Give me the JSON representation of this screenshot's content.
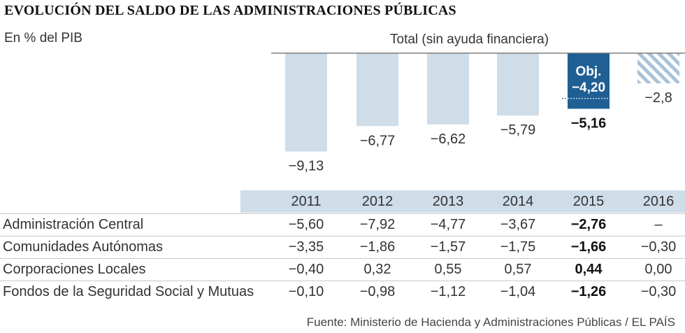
{
  "header": {
    "title": "EVOLUCIÓN DEL SALDO DE LAS ADMINISTRACIONES PÚBLICAS",
    "unit": "En % del PIB",
    "subtitle": "Total (sin ayuda financiera)"
  },
  "chart_data": {
    "type": "bar",
    "title": "EVOLUCIÓN DEL SALDO DE LAS ADMINISTRACIONES PÚBLICAS",
    "ylabel": "En % del PIB",
    "subtitle": "Total (sin ayuda financiera)",
    "categories": [
      "2011",
      "2012",
      "2013",
      "2014",
      "2015",
      "2016"
    ],
    "values": [
      -9.13,
      -6.77,
      -6.62,
      -5.79,
      -5.16,
      -2.8
    ],
    "value_labels": [
      "−9,13",
      "−6,77",
      "−6,62",
      "−5,79",
      "−5,16",
      "−2,8"
    ],
    "highlight_index": 4,
    "forecast_index": 5,
    "objective": {
      "value": -4.2,
      "label_line1": "Obj.",
      "label_line2": "−4,20"
    },
    "ylim": [
      -10,
      0
    ],
    "colors": {
      "bar": "#cfdde9",
      "highlight": "#1f5f94",
      "forecast_hatch": "#a9c2d8",
      "axis": "#666666"
    }
  },
  "table": {
    "years": [
      "2011",
      "2012",
      "2013",
      "2014",
      "2015",
      "2016"
    ],
    "rows": [
      {
        "label": "Administración Central",
        "values": [
          "−5,60",
          "−7,92",
          "−4,77",
          "−3,67",
          "−2,76",
          "–"
        ]
      },
      {
        "label": "Comunidades Autónomas",
        "values": [
          "−3,35",
          "−1,86",
          "−1,57",
          "−1,75",
          "−1,66",
          "−0,30"
        ]
      },
      {
        "label": "Corporaciones Locales",
        "values": [
          "−0,40",
          "0,32",
          "0,55",
          "0,57",
          "0,44",
          "0,00"
        ]
      },
      {
        "label": "Fondos de la Seguridad Social y Mutuas",
        "values": [
          "−0,10",
          "−0,98",
          "−1,12",
          "−1,04",
          "−1,26",
          "−0,30"
        ]
      }
    ],
    "bold_column": 4
  },
  "source": "Fuente: Ministerio de Hacienda y Administraciones Públicas / EL PAÍS"
}
